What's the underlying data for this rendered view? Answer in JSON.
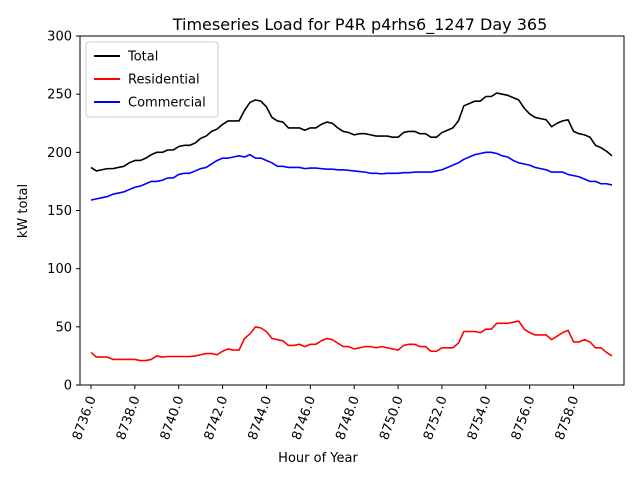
{
  "chart_data": {
    "type": "line",
    "title": "Timeseries Load for P4R p4rhs6_1247  Day 365",
    "xlabel": "Hour of Year",
    "ylabel": "kW total",
    "xlim": [
      8735.5,
      8760.3
    ],
    "ylim": [
      0,
      300
    ],
    "xticks": [
      8736,
      8738,
      8740,
      8742,
      8744,
      8746,
      8748,
      8750,
      8752,
      8754,
      8756,
      8758
    ],
    "xtick_labels": [
      "8736.0",
      "8738.0",
      "8740.0",
      "8742.0",
      "8744.0",
      "8746.0",
      "8748.0",
      "8750.0",
      "8752.0",
      "8754.0",
      "8756.0",
      "8758.0"
    ],
    "yticks": [
      0,
      50,
      100,
      150,
      200,
      250,
      300
    ],
    "ytick_labels": [
      "0",
      "50",
      "100",
      "150",
      "200",
      "250",
      "300"
    ],
    "grid": false,
    "legend_position": "top-left",
    "series": [
      {
        "name": "Total",
        "color": "#000000",
        "points": [
          [
            8736.0,
            187
          ],
          [
            8736.25,
            184
          ],
          [
            8736.5,
            185
          ],
          [
            8736.75,
            186
          ],
          [
            8737.0,
            186
          ],
          [
            8737.25,
            187
          ],
          [
            8737.5,
            188
          ],
          [
            8737.75,
            191
          ],
          [
            8738.0,
            193
          ],
          [
            8738.25,
            193
          ],
          [
            8738.5,
            195
          ],
          [
            8738.75,
            198
          ],
          [
            8739.0,
            200
          ],
          [
            8739.25,
            200
          ],
          [
            8739.5,
            202
          ],
          [
            8739.75,
            202
          ],
          [
            8740.0,
            205
          ],
          [
            8740.25,
            206
          ],
          [
            8740.5,
            206
          ],
          [
            8740.75,
            208
          ],
          [
            8741.0,
            212
          ],
          [
            8741.25,
            214
          ],
          [
            8741.5,
            218
          ],
          [
            8741.75,
            220
          ],
          [
            8742.0,
            224
          ],
          [
            8742.25,
            227
          ],
          [
            8742.5,
            227
          ],
          [
            8742.75,
            227
          ],
          [
            8743.0,
            236
          ],
          [
            8743.25,
            243
          ],
          [
            8743.5,
            245
          ],
          [
            8743.75,
            244
          ],
          [
            8744.0,
            239
          ],
          [
            8744.25,
            230
          ],
          [
            8744.5,
            227
          ],
          [
            8744.75,
            226
          ],
          [
            8745.0,
            221
          ],
          [
            8745.25,
            221
          ],
          [
            8745.5,
            221
          ],
          [
            8745.75,
            219
          ],
          [
            8746.0,
            221
          ],
          [
            8746.25,
            221
          ],
          [
            8746.5,
            224
          ],
          [
            8746.75,
            226
          ],
          [
            8747.0,
            225
          ],
          [
            8747.25,
            221
          ],
          [
            8747.5,
            218
          ],
          [
            8747.75,
            217
          ],
          [
            8748.0,
            215
          ],
          [
            8748.25,
            216
          ],
          [
            8748.5,
            216
          ],
          [
            8748.75,
            215
          ],
          [
            8749.0,
            214
          ],
          [
            8749.25,
            214
          ],
          [
            8749.5,
            214
          ],
          [
            8749.75,
            213
          ],
          [
            8750.0,
            213
          ],
          [
            8750.25,
            217
          ],
          [
            8750.5,
            218
          ],
          [
            8750.75,
            218
          ],
          [
            8751.0,
            216
          ],
          [
            8751.25,
            216
          ],
          [
            8751.5,
            213
          ],
          [
            8751.75,
            213
          ],
          [
            8752.0,
            217
          ],
          [
            8752.25,
            219
          ],
          [
            8752.5,
            221
          ],
          [
            8752.75,
            227
          ],
          [
            8753.0,
            240
          ],
          [
            8753.25,
            242
          ],
          [
            8753.5,
            244
          ],
          [
            8753.75,
            244
          ],
          [
            8754.0,
            248
          ],
          [
            8754.25,
            248
          ],
          [
            8754.5,
            251
          ],
          [
            8754.75,
            250
          ],
          [
            8755.0,
            249
          ],
          [
            8755.25,
            247
          ],
          [
            8755.5,
            245
          ],
          [
            8755.75,
            238
          ],
          [
            8756.0,
            233
          ],
          [
            8756.25,
            230
          ],
          [
            8756.5,
            229
          ],
          [
            8756.75,
            228
          ],
          [
            8757.0,
            222
          ],
          [
            8757.25,
            225
          ],
          [
            8757.5,
            227
          ],
          [
            8757.75,
            228
          ],
          [
            8758.0,
            218
          ],
          [
            8758.25,
            216
          ],
          [
            8758.5,
            215
          ],
          [
            8758.75,
            213
          ],
          [
            8759.0,
            206
          ],
          [
            8759.25,
            204
          ],
          [
            8759.5,
            201
          ],
          [
            8759.75,
            197
          ]
        ]
      },
      {
        "name": "Residential",
        "color": "#ff0000",
        "points": [
          [
            8736.0,
            28
          ],
          [
            8736.25,
            24
          ],
          [
            8736.5,
            24
          ],
          [
            8736.75,
            24
          ],
          [
            8737.0,
            22
          ],
          [
            8737.25,
            22
          ],
          [
            8737.5,
            22
          ],
          [
            8737.75,
            22
          ],
          [
            8738.0,
            22
          ],
          [
            8738.25,
            21
          ],
          [
            8738.5,
            21
          ],
          [
            8738.75,
            22
          ],
          [
            8739.0,
            25
          ],
          [
            8739.25,
            24
          ],
          [
            8739.5,
            24.5
          ],
          [
            8739.75,
            24.5
          ],
          [
            8740.0,
            24.5
          ],
          [
            8740.25,
            24.5
          ],
          [
            8740.5,
            24.5
          ],
          [
            8740.75,
            25
          ],
          [
            8741.0,
            26
          ],
          [
            8741.25,
            27
          ],
          [
            8741.5,
            27
          ],
          [
            8741.75,
            26
          ],
          [
            8742.0,
            29
          ],
          [
            8742.25,
            31
          ],
          [
            8742.5,
            30
          ],
          [
            8742.75,
            30
          ],
          [
            8743.0,
            40
          ],
          [
            8743.25,
            44
          ],
          [
            8743.5,
            50
          ],
          [
            8743.75,
            49
          ],
          [
            8744.0,
            46
          ],
          [
            8744.25,
            40
          ],
          [
            8744.5,
            39
          ],
          [
            8744.75,
            38
          ],
          [
            8745.0,
            34
          ],
          [
            8745.25,
            34
          ],
          [
            8745.5,
            35
          ],
          [
            8745.75,
            33
          ],
          [
            8746.0,
            35
          ],
          [
            8746.25,
            35
          ],
          [
            8746.5,
            38
          ],
          [
            8746.75,
            40
          ],
          [
            8747.0,
            39
          ],
          [
            8747.25,
            36
          ],
          [
            8747.5,
            33
          ],
          [
            8747.75,
            33
          ],
          [
            8748.0,
            31
          ],
          [
            8748.25,
            32
          ],
          [
            8748.5,
            33
          ],
          [
            8748.75,
            33
          ],
          [
            8749.0,
            32
          ],
          [
            8749.25,
            33
          ],
          [
            8749.5,
            32
          ],
          [
            8749.75,
            31
          ],
          [
            8750.0,
            30
          ],
          [
            8750.25,
            34
          ],
          [
            8750.5,
            35
          ],
          [
            8750.75,
            35
          ],
          [
            8751.0,
            33
          ],
          [
            8751.25,
            33
          ],
          [
            8751.5,
            29
          ],
          [
            8751.75,
            29
          ],
          [
            8752.0,
            32
          ],
          [
            8752.25,
            32
          ],
          [
            8752.5,
            32
          ],
          [
            8752.75,
            36
          ],
          [
            8753.0,
            46
          ],
          [
            8753.25,
            46
          ],
          [
            8753.5,
            46
          ],
          [
            8753.75,
            45
          ],
          [
            8754.0,
            48
          ],
          [
            8754.25,
            48
          ],
          [
            8754.5,
            53
          ],
          [
            8754.75,
            53
          ],
          [
            8755.0,
            53
          ],
          [
            8755.25,
            54
          ],
          [
            8755.5,
            55
          ],
          [
            8755.75,
            48
          ],
          [
            8756.0,
            45
          ],
          [
            8756.25,
            43
          ],
          [
            8756.5,
            43
          ],
          [
            8756.75,
            43
          ],
          [
            8757.0,
            39
          ],
          [
            8757.25,
            42
          ],
          [
            8757.5,
            45
          ],
          [
            8757.75,
            47
          ],
          [
            8758.0,
            37
          ],
          [
            8758.25,
            37
          ],
          [
            8758.5,
            39
          ],
          [
            8758.75,
            37
          ],
          [
            8759.0,
            32
          ],
          [
            8759.25,
            32
          ],
          [
            8759.5,
            28
          ],
          [
            8759.75,
            25
          ]
        ]
      },
      {
        "name": "Commercial",
        "color": "#0000ff",
        "points": [
          [
            8736.0,
            159
          ],
          [
            8736.25,
            160
          ],
          [
            8736.5,
            161
          ],
          [
            8736.75,
            162
          ],
          [
            8737.0,
            164
          ],
          [
            8737.25,
            165
          ],
          [
            8737.5,
            166
          ],
          [
            8737.75,
            168
          ],
          [
            8738.0,
            170
          ],
          [
            8738.25,
            171
          ],
          [
            8738.5,
            173
          ],
          [
            8738.75,
            175
          ],
          [
            8739.0,
            175
          ],
          [
            8739.25,
            176
          ],
          [
            8739.5,
            178
          ],
          [
            8739.75,
            178
          ],
          [
            8740.0,
            181
          ],
          [
            8740.25,
            182
          ],
          [
            8740.5,
            182
          ],
          [
            8740.75,
            184
          ],
          [
            8741.0,
            186
          ],
          [
            8741.25,
            187
          ],
          [
            8741.5,
            190
          ],
          [
            8741.75,
            193
          ],
          [
            8742.0,
            195
          ],
          [
            8742.25,
            195
          ],
          [
            8742.5,
            196
          ],
          [
            8742.75,
            197
          ],
          [
            8743.0,
            196
          ],
          [
            8743.25,
            198
          ],
          [
            8743.5,
            195
          ],
          [
            8743.75,
            195
          ],
          [
            8744.0,
            193
          ],
          [
            8744.25,
            191
          ],
          [
            8744.5,
            188
          ],
          [
            8744.75,
            188
          ],
          [
            8745.0,
            187
          ],
          [
            8745.25,
            187
          ],
          [
            8745.5,
            187
          ],
          [
            8745.75,
            186
          ],
          [
            8746.0,
            186.5
          ],
          [
            8746.25,
            186.5
          ],
          [
            8746.5,
            186
          ],
          [
            8746.75,
            185.5
          ],
          [
            8747.0,
            185.5
          ],
          [
            8747.25,
            185
          ],
          [
            8747.5,
            185
          ],
          [
            8747.75,
            184.5
          ],
          [
            8748.0,
            184
          ],
          [
            8748.25,
            183.5
          ],
          [
            8748.5,
            183
          ],
          [
            8748.75,
            182
          ],
          [
            8749.0,
            182
          ],
          [
            8749.25,
            181.5
          ],
          [
            8749.5,
            182
          ],
          [
            8749.75,
            182
          ],
          [
            8750.0,
            182
          ],
          [
            8750.25,
            182.5
          ],
          [
            8750.5,
            182.5
          ],
          [
            8750.75,
            183
          ],
          [
            8751.0,
            183
          ],
          [
            8751.25,
            183
          ],
          [
            8751.5,
            183
          ],
          [
            8751.75,
            184
          ],
          [
            8752.0,
            185
          ],
          [
            8752.25,
            187
          ],
          [
            8752.5,
            189
          ],
          [
            8752.75,
            191
          ],
          [
            8753.0,
            194
          ],
          [
            8753.25,
            196
          ],
          [
            8753.5,
            198
          ],
          [
            8753.75,
            199
          ],
          [
            8754.0,
            200
          ],
          [
            8754.25,
            200
          ],
          [
            8754.5,
            199
          ],
          [
            8754.75,
            197
          ],
          [
            8755.0,
            196
          ],
          [
            8755.25,
            193
          ],
          [
            8755.5,
            191
          ],
          [
            8755.75,
            190
          ],
          [
            8756.0,
            189
          ],
          [
            8756.25,
            187
          ],
          [
            8756.5,
            186
          ],
          [
            8756.75,
            185
          ],
          [
            8757.0,
            183
          ],
          [
            8757.25,
            183
          ],
          [
            8757.5,
            183
          ],
          [
            8757.75,
            181
          ],
          [
            8758.0,
            180
          ],
          [
            8758.25,
            179
          ],
          [
            8758.5,
            177
          ],
          [
            8758.75,
            175
          ],
          [
            8759.0,
            175
          ],
          [
            8759.25,
            173
          ],
          [
            8759.5,
            173
          ],
          [
            8759.75,
            172
          ]
        ]
      }
    ]
  }
}
